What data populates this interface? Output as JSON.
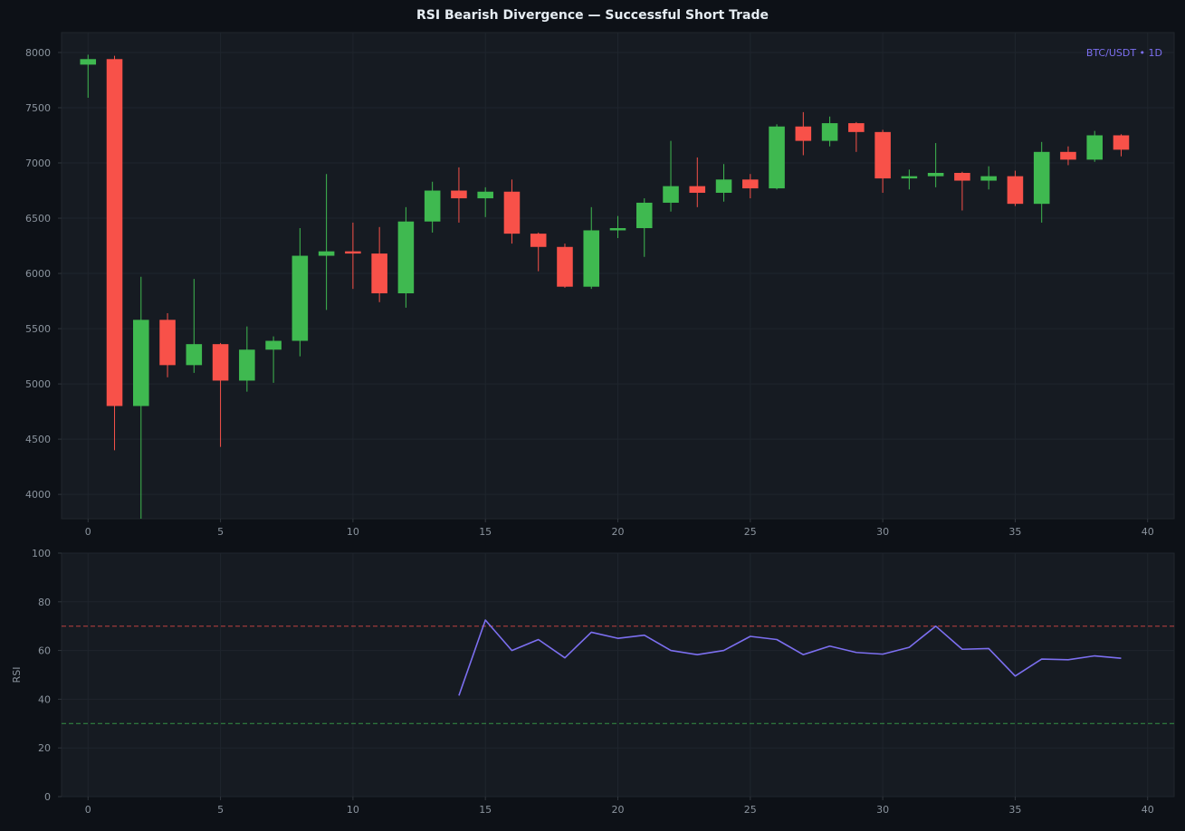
{
  "chart_data": [
    {
      "type": "candlestick",
      "title": "RSI Bearish Divergence — Successful Short Trade",
      "annotation": "BTC/USDT • 1D",
      "xlim": [
        -1,
        41
      ],
      "ylim": [
        3780,
        8180
      ],
      "x_ticks": [
        0,
        5,
        10,
        15,
        20,
        25,
        30,
        35,
        40
      ],
      "y_ticks": [
        4000,
        4500,
        5000,
        5500,
        6000,
        6500,
        7000,
        7500,
        8000
      ],
      "grid": true,
      "colors": {
        "up": "#3fb950",
        "down": "#f85149"
      },
      "candles": [
        {
          "x": 0,
          "o": 7890,
          "h": 7980,
          "l": 7590,
          "c": 7940
        },
        {
          "x": 1,
          "o": 7940,
          "h": 7970,
          "l": 4400,
          "c": 4800
        },
        {
          "x": 2,
          "o": 4800,
          "h": 5970,
          "l": 3780,
          "c": 5580
        },
        {
          "x": 3,
          "o": 5580,
          "h": 5640,
          "l": 5060,
          "c": 5170
        },
        {
          "x": 4,
          "o": 5170,
          "h": 5950,
          "l": 5100,
          "c": 5360
        },
        {
          "x": 5,
          "o": 5360,
          "h": 5370,
          "l": 4430,
          "c": 5030
        },
        {
          "x": 6,
          "o": 5030,
          "h": 5520,
          "l": 4930,
          "c": 5310
        },
        {
          "x": 7,
          "o": 5310,
          "h": 5430,
          "l": 5010,
          "c": 5390
        },
        {
          "x": 8,
          "o": 5390,
          "h": 6410,
          "l": 5250,
          "c": 6160
        },
        {
          "x": 9,
          "o": 6160,
          "h": 6900,
          "l": 5670,
          "c": 6200
        },
        {
          "x": 10,
          "o": 6200,
          "h": 6460,
          "l": 5860,
          "c": 6180
        },
        {
          "x": 11,
          "o": 6180,
          "h": 6420,
          "l": 5740,
          "c": 5820
        },
        {
          "x": 12,
          "o": 5820,
          "h": 6600,
          "l": 5690,
          "c": 6470
        },
        {
          "x": 13,
          "o": 6470,
          "h": 6830,
          "l": 6370,
          "c": 6750
        },
        {
          "x": 14,
          "o": 6750,
          "h": 6960,
          "l": 6460,
          "c": 6680
        },
        {
          "x": 15,
          "o": 6680,
          "h": 6780,
          "l": 6510,
          "c": 6740
        },
        {
          "x": 16,
          "o": 6740,
          "h": 6850,
          "l": 6270,
          "c": 6360
        },
        {
          "x": 17,
          "o": 6360,
          "h": 6370,
          "l": 6020,
          "c": 6240
        },
        {
          "x": 18,
          "o": 6240,
          "h": 6270,
          "l": 5870,
          "c": 5880
        },
        {
          "x": 19,
          "o": 5880,
          "h": 6600,
          "l": 5860,
          "c": 6390
        },
        {
          "x": 20,
          "o": 6390,
          "h": 6520,
          "l": 6320,
          "c": 6410
        },
        {
          "x": 21,
          "o": 6410,
          "h": 6680,
          "l": 6150,
          "c": 6640
        },
        {
          "x": 22,
          "o": 6640,
          "h": 7200,
          "l": 6560,
          "c": 6790
        },
        {
          "x": 23,
          "o": 6790,
          "h": 7050,
          "l": 6600,
          "c": 6730
        },
        {
          "x": 24,
          "o": 6730,
          "h": 6990,
          "l": 6650,
          "c": 6850
        },
        {
          "x": 25,
          "o": 6850,
          "h": 6900,
          "l": 6680,
          "c": 6770
        },
        {
          "x": 26,
          "o": 6770,
          "h": 7350,
          "l": 6760,
          "c": 7330
        },
        {
          "x": 27,
          "o": 7330,
          "h": 7460,
          "l": 7070,
          "c": 7200
        },
        {
          "x": 28,
          "o": 7200,
          "h": 7420,
          "l": 7150,
          "c": 7360
        },
        {
          "x": 29,
          "o": 7360,
          "h": 7370,
          "l": 7100,
          "c": 7280
        },
        {
          "x": 30,
          "o": 7280,
          "h": 7300,
          "l": 6730,
          "c": 6860
        },
        {
          "x": 31,
          "o": 6860,
          "h": 6940,
          "l": 6760,
          "c": 6880
        },
        {
          "x": 32,
          "o": 6880,
          "h": 7180,
          "l": 6780,
          "c": 6910
        },
        {
          "x": 33,
          "o": 6910,
          "h": 6920,
          "l": 6570,
          "c": 6840
        },
        {
          "x": 34,
          "o": 6840,
          "h": 6970,
          "l": 6760,
          "c": 6880
        },
        {
          "x": 35,
          "o": 6880,
          "h": 6930,
          "l": 6610,
          "c": 6630
        },
        {
          "x": 36,
          "o": 6630,
          "h": 7190,
          "l": 6460,
          "c": 7100
        },
        {
          "x": 37,
          "o": 7100,
          "h": 7150,
          "l": 6980,
          "c": 7030
        },
        {
          "x": 38,
          "o": 7030,
          "h": 7290,
          "l": 7010,
          "c": 7250
        },
        {
          "x": 39,
          "o": 7250,
          "h": 7260,
          "l": 7060,
          "c": 7120
        }
      ]
    },
    {
      "type": "line",
      "ylabel": "RSI",
      "xlim": [
        -1,
        41
      ],
      "ylim": [
        0,
        100
      ],
      "x_ticks": [
        0,
        5,
        10,
        15,
        20,
        25,
        30,
        35,
        40
      ],
      "y_ticks": [
        0,
        20,
        40,
        60,
        80,
        100
      ],
      "grid": true,
      "reference_lines": [
        {
          "y": 70,
          "color": "#f85149",
          "style": "dashed"
        },
        {
          "y": 30,
          "color": "#3fb950",
          "style": "dashed"
        }
      ],
      "series": [
        {
          "color": "#7c6ff0",
          "x": [
            14,
            15,
            16,
            17,
            18,
            19,
            20,
            21,
            22,
            23,
            24,
            25,
            26,
            27,
            28,
            29,
            30,
            31,
            32,
            33,
            34,
            35,
            36,
            37,
            38,
            39
          ],
          "y": [
            41.5,
            72.5,
            60,
            64.5,
            57,
            67.5,
            65,
            66.3,
            60,
            58.3,
            60,
            65.8,
            64.5,
            58.3,
            61.8,
            59.2,
            58.5,
            61.3,
            70,
            60.5,
            60.8,
            49.5,
            56.5,
            56.2,
            57.8,
            56.8
          ]
        }
      ]
    }
  ]
}
